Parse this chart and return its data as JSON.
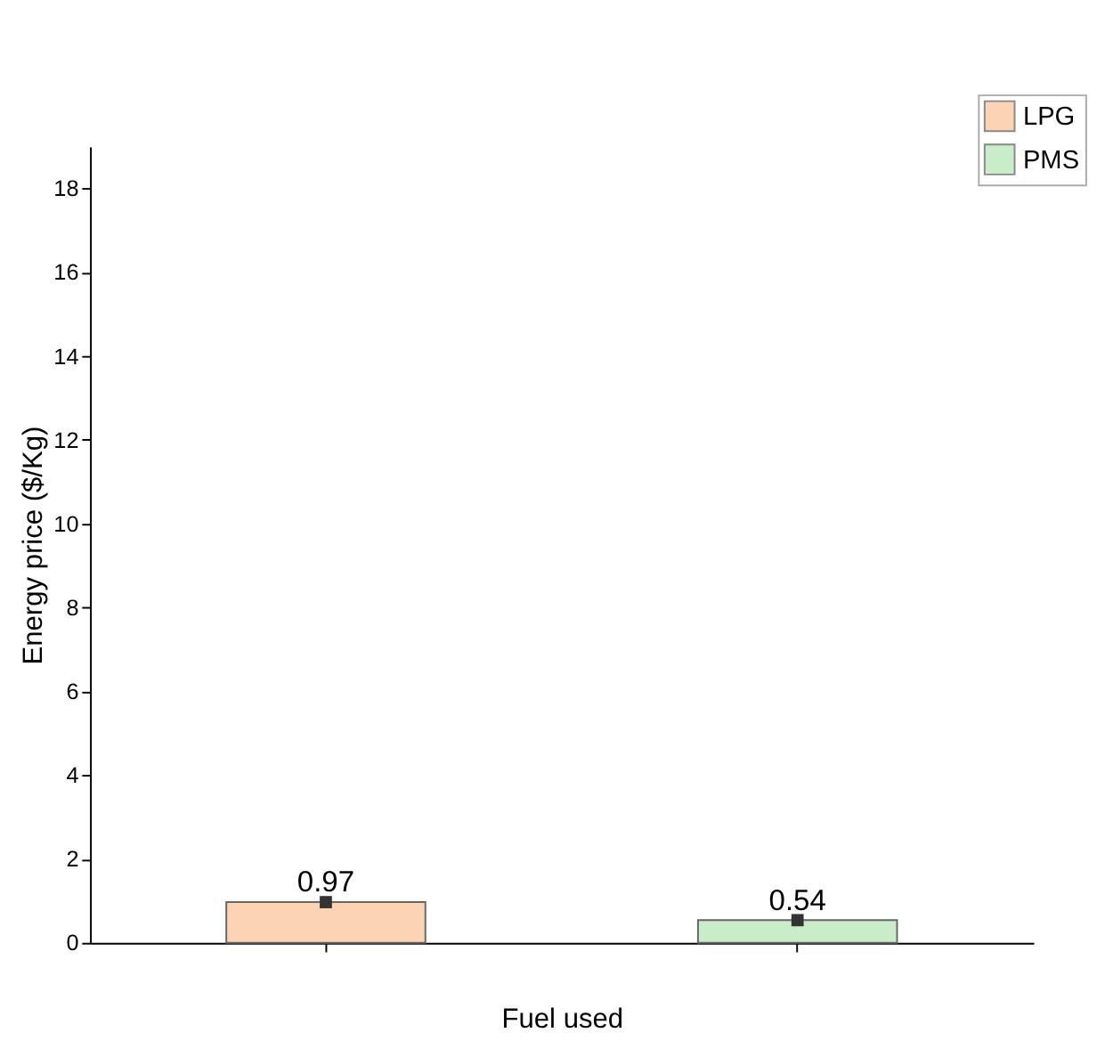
{
  "chart_data": {
    "type": "bar",
    "xlabel": "Fuel used",
    "ylabel": "Energy price ($/Kg)",
    "categories": [
      null,
      null
    ],
    "series": [
      {
        "name": "LPG",
        "color": "#fcd4b4",
        "values": [
          0.97,
          null
        ],
        "value_labels": [
          "0.97",
          null
        ]
      },
      {
        "name": "PMS",
        "color": "#c9edc9",
        "values": [
          null,
          0.54
        ],
        "value_labels": [
          null,
          "0.54"
        ]
      },
      {
        "type": "scatter",
        "color": "#333333",
        "marker": "square",
        "values": [
          0.97,
          0.54
        ]
      }
    ],
    "ylim": [
      0,
      19
    ],
    "yticks": [
      0,
      2,
      4,
      6,
      8,
      10,
      12,
      14,
      16,
      18
    ],
    "grid": false,
    "legend": "top right",
    "tick_labels": "y"
  }
}
